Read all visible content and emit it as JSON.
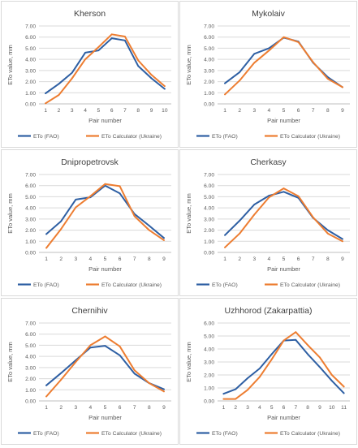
{
  "chart_data": [
    {
      "type": "line",
      "title": "Kherson",
      "xlabel": "Pair number",
      "ylabel": "ETo value, mm",
      "x": [
        1,
        2,
        3,
        4,
        5,
        6,
        7,
        8,
        9,
        10
      ],
      "ylim": [
        0,
        7
      ],
      "yticks": [
        "0.00",
        "1.00",
        "2.00",
        "3.00",
        "4.00",
        "5.00",
        "6.00",
        "7.00"
      ],
      "grid": "horizontal",
      "legend": "bottom",
      "series": [
        {
          "name": "ETo (FAO)",
          "color": "#2e5fa3",
          "values": [
            0.95,
            1.8,
            2.8,
            4.6,
            4.8,
            5.9,
            5.7,
            3.4,
            2.3,
            1.35
          ]
        },
        {
          "name": "ETo Calculator (Ukraine)",
          "color": "#ed7d31",
          "values": [
            0.05,
            0.8,
            2.3,
            4.0,
            5.1,
            6.25,
            6.05,
            3.9,
            2.6,
            1.6
          ]
        }
      ]
    },
    {
      "type": "line",
      "title": "Mykolaiv",
      "xlabel": "Pair number",
      "ylabel": "ETo value, mm",
      "x": [
        1,
        2,
        3,
        4,
        5,
        6,
        7,
        8,
        9
      ],
      "ylim": [
        0,
        7
      ],
      "yticks": [
        "0.00",
        "1.00",
        "2.00",
        "3.00",
        "4.00",
        "5.00",
        "6.00",
        "7.00"
      ],
      "grid": "horizontal",
      "legend": "bottom",
      "series": [
        {
          "name": "ETo (FAO)",
          "color": "#2e5fa3",
          "values": [
            1.85,
            2.85,
            4.5,
            5.0,
            5.95,
            5.6,
            3.7,
            2.4,
            1.5
          ]
        },
        {
          "name": "ETo Calculator (Ukraine)",
          "color": "#ed7d31",
          "values": [
            0.85,
            2.1,
            3.7,
            4.8,
            6.0,
            5.55,
            3.75,
            2.25,
            1.5
          ]
        }
      ]
    },
    {
      "type": "line",
      "title": "Dnipropetrovsk",
      "xlabel": "Pair number",
      "ylabel": "ETo value, mm",
      "x": [
        1,
        2,
        3,
        4,
        5,
        6,
        7,
        8,
        9
      ],
      "ylim": [
        0,
        7
      ],
      "yticks": [
        "0.00",
        "1.00",
        "2.00",
        "3.00",
        "4.00",
        "5.00",
        "6.00",
        "7.00"
      ],
      "grid": "horizontal",
      "legend": "bottom",
      "series": [
        {
          "name": "ETo (FAO)",
          "color": "#2e5fa3",
          "values": [
            1.65,
            2.8,
            4.75,
            4.95,
            6.0,
            5.3,
            3.45,
            2.4,
            1.3
          ]
        },
        {
          "name": "ETo Calculator (Ukraine)",
          "color": "#ed7d31",
          "values": [
            0.4,
            2.1,
            4.05,
            5.05,
            6.15,
            5.95,
            3.25,
            2.0,
            1.1
          ]
        }
      ]
    },
    {
      "type": "line",
      "title": "Cherkasy",
      "xlabel": "Pair number",
      "ylabel": "ETo value, mm",
      "x": [
        1,
        2,
        3,
        4,
        5,
        6,
        7,
        8,
        9
      ],
      "ylim": [
        0,
        7
      ],
      "yticks": [
        "0.00",
        "1.00",
        "2.00",
        "3.00",
        "4.00",
        "5.00",
        "6.00",
        "7.00"
      ],
      "grid": "horizontal",
      "legend": "bottom",
      "series": [
        {
          "name": "ETo (FAO)",
          "color": "#2e5fa3",
          "values": [
            1.55,
            2.85,
            4.3,
            5.1,
            5.45,
            4.9,
            3.1,
            2.0,
            1.2
          ]
        },
        {
          "name": "ETo Calculator (Ukraine)",
          "color": "#ed7d31",
          "values": [
            0.45,
            1.7,
            3.4,
            4.95,
            5.75,
            5.05,
            3.15,
            1.7,
            1.0
          ]
        }
      ]
    },
    {
      "type": "line",
      "title": "Chernihiv",
      "xlabel": "Pair number",
      "ylabel": "ETo value, mm",
      "x": [
        1,
        2,
        3,
        4,
        5,
        6,
        7,
        8,
        9
      ],
      "ylim": [
        0,
        7
      ],
      "yticks": [
        "0.00",
        "1.00",
        "2.00",
        "3.00",
        "4.00",
        "5.00",
        "6.00",
        "7.00"
      ],
      "grid": "horizontal",
      "legend": "bottom",
      "series": [
        {
          "name": "ETo (FAO)",
          "color": "#2e5fa3",
          "values": [
            1.4,
            2.5,
            3.65,
            4.8,
            4.95,
            4.1,
            2.45,
            1.6,
            1.05
          ]
        },
        {
          "name": "ETo Calculator (Ukraine)",
          "color": "#ed7d31",
          "values": [
            0.4,
            1.9,
            3.5,
            5.0,
            5.8,
            4.9,
            2.75,
            1.6,
            0.85
          ]
        }
      ]
    },
    {
      "type": "line",
      "title": "Uzhhorod (Zakarpattia)",
      "xlabel": "Pair number",
      "ylabel": "ETo value, mm",
      "x": [
        1,
        2,
        3,
        4,
        5,
        6,
        7,
        8,
        9,
        10,
        11
      ],
      "ylim": [
        0,
        6
      ],
      "yticks": [
        "0.00",
        "1.00",
        "2.00",
        "3.00",
        "4.00",
        "5.00",
        "6.00"
      ],
      "grid": "horizontal",
      "legend": "bottom",
      "series": [
        {
          "name": "ETo (FAO)",
          "color": "#2e5fa3",
          "values": [
            0.55,
            0.9,
            1.75,
            2.5,
            3.6,
            4.65,
            4.7,
            3.6,
            2.6,
            1.55,
            0.6
          ]
        },
        {
          "name": "ETo Calculator (Ukraine)",
          "color": "#ed7d31",
          "values": [
            0.15,
            0.15,
            0.85,
            1.85,
            3.2,
            4.65,
            5.3,
            4.3,
            3.35,
            2.0,
            1.1
          ]
        }
      ]
    }
  ]
}
